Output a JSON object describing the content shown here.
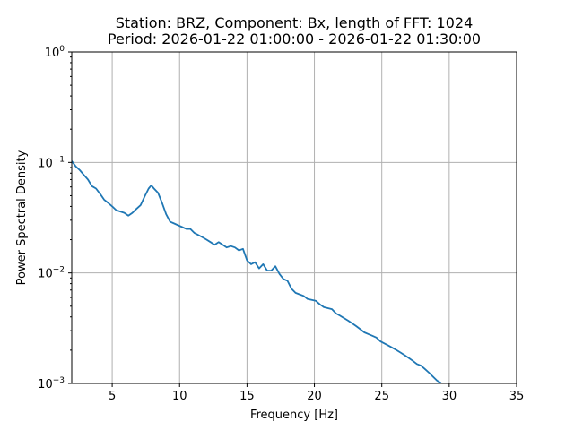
{
  "chart_data": {
    "type": "line",
    "title": "Station: BRZ, Component: Bx, length of FFT: 1024",
    "subtitle": "Period: 2026-01-22 01:00:00 - 2026-01-22 01:30:00",
    "xlabel": "Frequency [Hz]",
    "ylabel": "Power Spectral Density",
    "xlim": [
      2,
      35
    ],
    "ylim": [
      0.001,
      1
    ],
    "yscale": "log",
    "grid": true,
    "xticks": [
      5,
      10,
      15,
      20,
      25,
      30,
      35
    ],
    "xtick_labels": [
      "5",
      "10",
      "15",
      "20",
      "25",
      "30",
      "35"
    ],
    "yticks": [
      0.001,
      0.01,
      0.1,
      1
    ],
    "ytick_labels": [
      {
        "base": "10",
        "exp": "−3"
      },
      {
        "base": "10",
        "exp": "−2"
      },
      {
        "base": "10",
        "exp": "−1"
      },
      {
        "base": "10",
        "exp": "0"
      }
    ],
    "series": [
      {
        "color": "#1f77b4",
        "x": [
          2.0,
          2.3,
          2.6,
          2.9,
          3.2,
          3.5,
          3.8,
          4.1,
          4.4,
          4.7,
          5.0,
          5.3,
          5.6,
          5.9,
          6.2,
          6.5,
          6.8,
          7.1,
          7.4,
          7.7,
          7.9,
          8.1,
          8.4,
          8.7,
          9.0,
          9.3,
          9.6,
          9.9,
          10.2,
          10.5,
          10.8,
          11.1,
          11.4,
          11.7,
          12.0,
          12.3,
          12.6,
          12.9,
          13.2,
          13.5,
          13.8,
          14.1,
          14.4,
          14.7,
          15.0,
          15.3,
          15.6,
          15.9,
          16.2,
          16.5,
          16.8,
          17.1,
          17.4,
          17.7,
          18.0,
          18.3,
          18.6,
          18.9,
          19.2,
          19.5,
          19.8,
          20.1,
          20.4,
          20.7,
          21.0,
          21.3,
          21.6,
          21.9,
          22.2,
          22.5,
          22.8,
          23.1,
          23.4,
          23.7,
          24.0,
          24.3,
          24.6,
          24.9,
          25.2,
          25.5,
          25.8,
          26.1,
          26.4,
          26.7,
          27.0,
          27.3,
          27.6,
          27.9,
          28.2,
          28.5,
          28.8,
          29.1,
          29.4
        ],
        "y": [
          0.103,
          0.092,
          0.085,
          0.077,
          0.07,
          0.061,
          0.058,
          0.052,
          0.046,
          0.043,
          0.04,
          0.037,
          0.036,
          0.035,
          0.033,
          0.035,
          0.038,
          0.041,
          0.049,
          0.058,
          0.062,
          0.058,
          0.053,
          0.043,
          0.034,
          0.029,
          0.028,
          0.027,
          0.026,
          0.025,
          0.025,
          0.023,
          0.022,
          0.021,
          0.02,
          0.019,
          0.018,
          0.019,
          0.018,
          0.017,
          0.0175,
          0.017,
          0.016,
          0.0165,
          0.013,
          0.012,
          0.0125,
          0.011,
          0.012,
          0.0105,
          0.0105,
          0.0115,
          0.0098,
          0.0088,
          0.0085,
          0.0072,
          0.0066,
          0.0064,
          0.0062,
          0.0058,
          0.0057,
          0.0056,
          0.0052,
          0.0049,
          0.0048,
          0.0047,
          0.0043,
          0.0041,
          0.0039,
          0.0037,
          0.0035,
          0.0033,
          0.0031,
          0.0029,
          0.0028,
          0.0027,
          0.0026,
          0.0024,
          0.0023,
          0.0022,
          0.0021,
          0.002,
          0.0019,
          0.0018,
          0.0017,
          0.0016,
          0.0015,
          0.00145,
          0.00135,
          0.00125,
          0.00115,
          0.00106,
          0.00101
        ]
      }
    ]
  }
}
